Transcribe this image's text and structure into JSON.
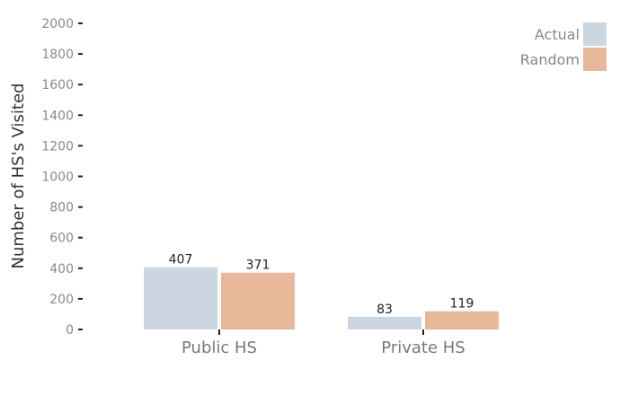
{
  "chart_data": {
    "type": "bar",
    "categories": [
      "Public HS",
      "Private HS"
    ],
    "series": [
      {
        "name": "Actual",
        "color": "#ccd6e0",
        "values": [
          407,
          83
        ]
      },
      {
        "name": "Random",
        "color": "#e8b89b",
        "values": [
          371,
          119
        ]
      }
    ],
    "title": "",
    "xlabel": "",
    "ylabel": "Number of HS's Visited",
    "ylim": [
      0,
      2000
    ],
    "yticks": [
      0,
      200,
      400,
      600,
      800,
      1000,
      1200,
      1400,
      1600,
      1800,
      2000
    ],
    "grid": false,
    "legend_position": "top-right",
    "data_labels": true
  }
}
